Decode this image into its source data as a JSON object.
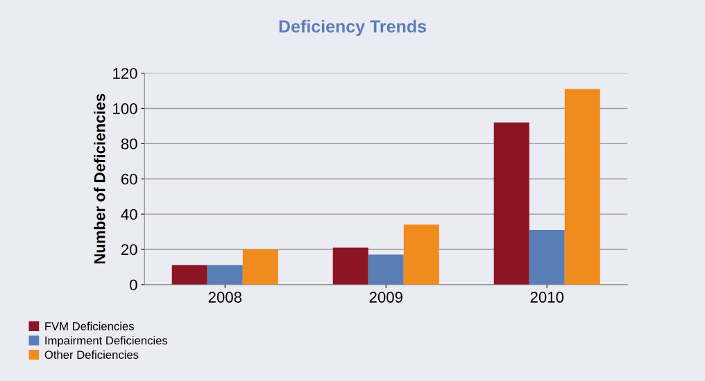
{
  "chart_data": {
    "type": "bar",
    "title": "Deficiency Trends",
    "ylabel": "Number of Deficiencies",
    "categories": [
      "2008",
      "2009",
      "2010"
    ],
    "series": [
      {
        "name": "FVM Deficiencies",
        "color": "#8b1522",
        "values": [
          11,
          21,
          92
        ]
      },
      {
        "name": "Impairment Deficiencies",
        "color": "#5b7db5",
        "values": [
          11,
          17,
          31
        ]
      },
      {
        "name": "Other Deficiencies",
        "color": "#f08c1e",
        "values": [
          20,
          34,
          111
        ]
      }
    ],
    "ylim": [
      0,
      120
    ],
    "yticks": [
      0,
      20,
      40,
      60,
      80,
      100,
      120
    ],
    "grid": "y",
    "legend": "bottom left"
  }
}
